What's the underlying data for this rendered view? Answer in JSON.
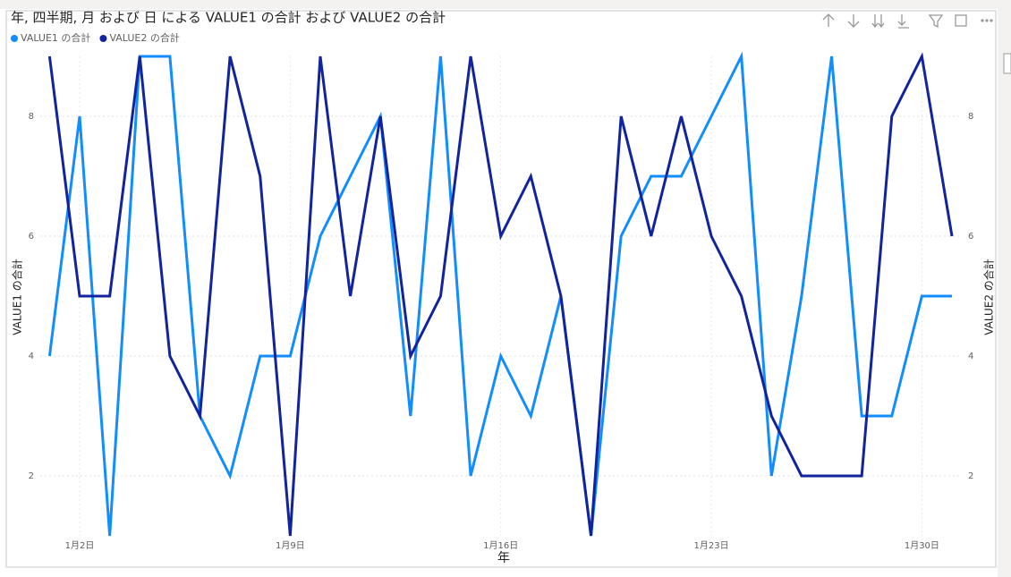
{
  "chart_data": {
    "type": "line",
    "title": "年, 四半期, 月 および 日 による VALUE1 の合計 および VALUE2 の合計",
    "x_label": "年",
    "y_label": "VALUE1 の合計",
    "y2_label": "VALUE2 の合計",
    "categories": [
      null,
      "1月2日",
      null,
      null,
      null,
      null,
      null,
      null,
      "1月9日",
      null,
      null,
      null,
      null,
      null,
      null,
      "1月16日",
      null,
      null,
      null,
      null,
      null,
      null,
      "1月23日",
      null,
      null,
      null,
      null,
      null,
      null,
      "1月30日",
      null
    ],
    "series": [
      {
        "name": "VALUE1 の合計",
        "color": "#118DFF",
        "values": [
          4,
          8,
          1,
          9,
          9,
          3,
          2,
          4,
          4,
          6,
          7,
          8,
          3,
          9,
          2,
          4,
          3,
          5,
          1,
          6,
          7,
          7,
          8,
          9,
          2,
          5,
          9,
          3,
          3,
          5,
          5
        ]
      },
      {
        "name": "VALUE2 の合計",
        "color": "#12239E",
        "axis": "y2",
        "values": [
          9,
          5,
          5,
          9,
          4,
          3,
          9,
          7,
          1,
          9,
          5,
          8,
          4,
          5,
          9,
          6,
          7,
          5,
          1,
          8,
          6,
          8,
          6,
          5,
          3,
          2,
          2,
          2,
          8,
          9,
          6
        ]
      }
    ],
    "ylim": [
      1,
      9
    ],
    "yticks": [
      2,
      4,
      6,
      8
    ],
    "y2lim": [
      1,
      9
    ],
    "y2ticks": [
      2,
      4,
      6,
      8
    ],
    "grid": true,
    "legend": "top-left"
  }
}
